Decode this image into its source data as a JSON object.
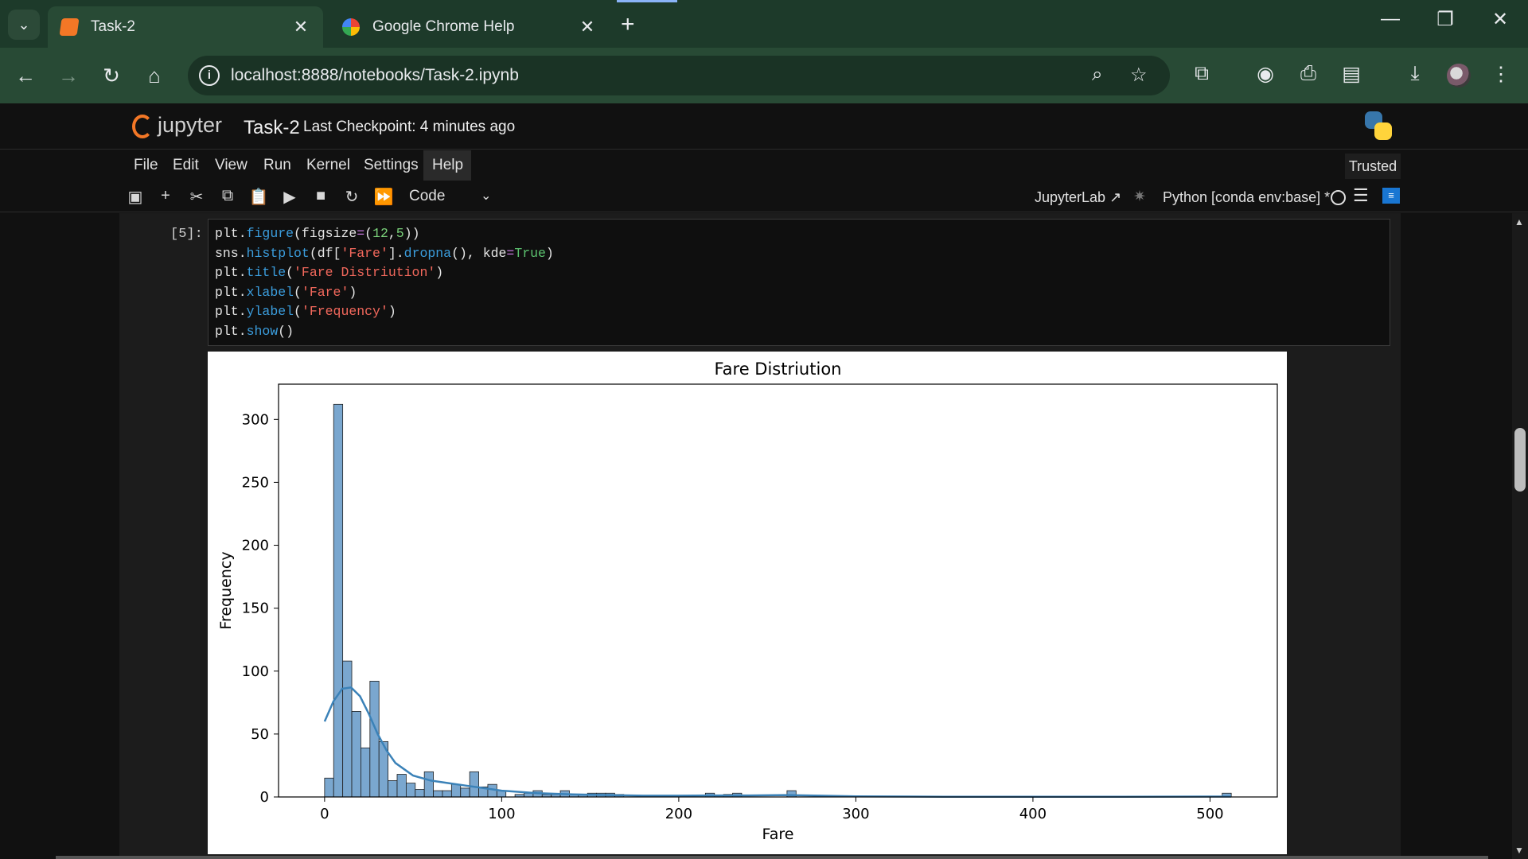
{
  "browser": {
    "tabs": [
      {
        "title": "Task-2",
        "active": true,
        "favicon": "notebook-icon"
      },
      {
        "title": "Google Chrome Help",
        "active": false,
        "favicon": "google-icon"
      }
    ],
    "new_tab_glyph": "+",
    "url": "localhost:8888/notebooks/Task-2.ipynb"
  },
  "jupyter": {
    "logo_text": "jupyter",
    "notebook_name": "Task-2",
    "checkpoint": "Last Checkpoint: 4 minutes ago",
    "menu": [
      "File",
      "Edit",
      "View",
      "Run",
      "Kernel",
      "Settings",
      "Help"
    ],
    "trusted": "Trusted",
    "cell_type": "Code",
    "jupyterlab_link": "JupyterLab",
    "kernel": "Python [conda env:base] *"
  },
  "cell": {
    "prompt": "[5]:",
    "code_lines": [
      "plt.figure(figsize=(12,5))",
      "sns.histplot(df['Fare'].dropna(), kde=True)",
      "plt.title('Fare Distriution')",
      "plt.xlabel('Fare')",
      "plt.ylabel('Frequency')",
      "plt.show()"
    ]
  },
  "chart_data": {
    "type": "bar",
    "title": "Fare Distriution",
    "xlabel": "Fare",
    "ylabel": "Frequency",
    "xlim": [
      -26,
      538
    ],
    "ylim": [
      0,
      328
    ],
    "xticks": [
      0,
      100,
      200,
      300,
      400,
      500
    ],
    "yticks": [
      0,
      50,
      100,
      150,
      200,
      250,
      300
    ],
    "bin_width": 5.12,
    "bin_start": 0,
    "counts": [
      15,
      312,
      108,
      68,
      39,
      92,
      44,
      13,
      18,
      11,
      6,
      20,
      5,
      5,
      10,
      7,
      20,
      8,
      10,
      5,
      0,
      2,
      3,
      5,
      2,
      2,
      5,
      2,
      2,
      3,
      3,
      3,
      2,
      0,
      0,
      0,
      0,
      0,
      0,
      0,
      0,
      0,
      3,
      1,
      2,
      3,
      0,
      0,
      0,
      0,
      0,
      5,
      0,
      0,
      0,
      0,
      0,
      0,
      0,
      0,
      0,
      0,
      0,
      0,
      0,
      0,
      0,
      0,
      0,
      0,
      0,
      0,
      0,
      0,
      0,
      0,
      0,
      0,
      0,
      0,
      0,
      0,
      0,
      0,
      0,
      0,
      0,
      0,
      0,
      0,
      0,
      0,
      0,
      0,
      0,
      0,
      0,
      0,
      0,
      3
    ],
    "kde": {
      "x": [
        0,
        5,
        10,
        15,
        20,
        25,
        30,
        35,
        40,
        50,
        60,
        70,
        80,
        90,
        100,
        120,
        140,
        160,
        180,
        200,
        220,
        240,
        260,
        280,
        300,
        350,
        400,
        450,
        512
      ],
      "y": [
        60,
        76,
        86,
        87,
        80,
        66,
        50,
        37,
        27,
        17,
        13,
        11,
        9,
        7,
        5,
        3,
        2,
        1.5,
        1,
        1,
        1.2,
        1.2,
        1.5,
        1,
        0.5,
        0.2,
        0.1,
        0.1,
        0.3
      ]
    },
    "colors": {
      "bar": "#7aa7cf",
      "bar_edge": "#1f1f1f",
      "kde": "#3b82b8"
    }
  }
}
